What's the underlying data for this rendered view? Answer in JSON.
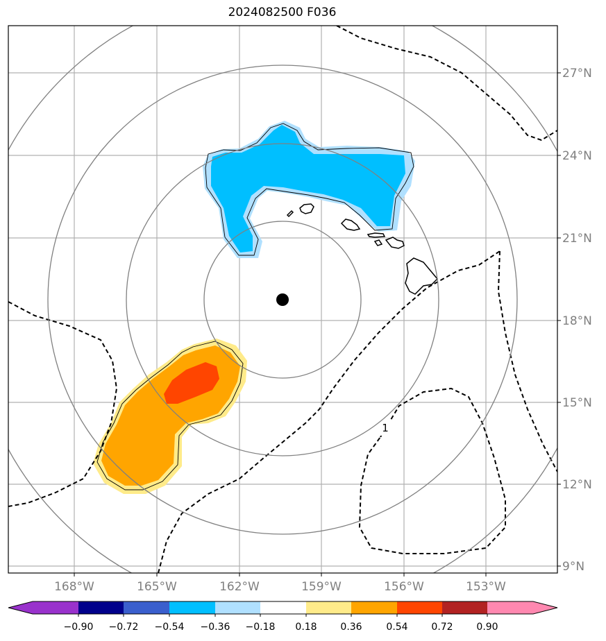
{
  "title": "2024082500 F036",
  "map": {
    "lat_labels": [
      "27°N",
      "24°N",
      "21°N",
      "18°N",
      "15°N",
      "12°N",
      "9°N"
    ],
    "lon_labels": [
      "168°W",
      "165°W",
      "162°W",
      "159°W",
      "156°W",
      "153°W"
    ],
    "contour_label": "1",
    "colors": {
      "frame": "#000000",
      "grid": "#b0b0b0",
      "range_ring": "#808080",
      "neg_light": "#b0e0ff",
      "neg_mid": "#00bfff",
      "pos_light": "#ffeb8a",
      "pos_mid": "#ffa500",
      "pos_strong": "#ff4500",
      "center_marker": "#000000"
    }
  },
  "colorbar": {
    "tick_labels": [
      "−0.90",
      "−0.72",
      "−0.54",
      "−0.36",
      "−0.18",
      "0.18",
      "0.36",
      "0.54",
      "0.72",
      "0.90"
    ],
    "colors": [
      "#9932cc",
      "#00008b",
      "#3a5fcd",
      "#00bfff",
      "#b0e0ff",
      "#ffffff",
      "#ffeb8a",
      "#ffa500",
      "#ff4500",
      "#b22222",
      "#ff88b0"
    ]
  }
}
